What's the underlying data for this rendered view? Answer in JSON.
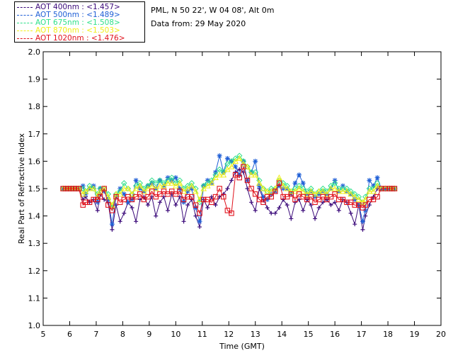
{
  "legend": [
    {
      "label": "AOT  400nm : <1.457>",
      "color": "#3b0a7a"
    },
    {
      "label": "AOT  500nm : <1.489>",
      "color": "#1f5fd6"
    },
    {
      "label": "AOT  675nm : <1.508>",
      "color": "#2ee08a"
    },
    {
      "label": "AOT  870nm : <1.503>",
      "color": "#f2ee1a"
    },
    {
      "label": "AOT 1020nm : <1.476>",
      "color": "#e0121c"
    }
  ],
  "info": {
    "location": "PML, N 50 22', W 04 08', Alt 0m",
    "date": "Data from: 29 May 2020"
  },
  "chart_data": {
    "type": "line",
    "xlabel": "Time (GMT)",
    "ylabel": "Real Part of Refractive Index",
    "xlim": [
      5,
      20
    ],
    "ylim": [
      1.0,
      2.0
    ],
    "xticks": [
      5,
      6,
      7,
      8,
      9,
      10,
      11,
      12,
      13,
      14,
      15,
      16,
      17,
      18,
      19,
      20
    ],
    "yticks": [
      "1.0",
      "1.1",
      "1.2",
      "1.3",
      "1.4",
      "1.5",
      "1.6",
      "1.7",
      "1.8",
      "1.9",
      "2.0"
    ],
    "x": [
      5.75,
      5.85,
      5.95,
      6.05,
      6.15,
      6.25,
      6.35,
      6.5,
      6.6,
      6.75,
      6.9,
      7.05,
      7.15,
      7.3,
      7.45,
      7.6,
      7.75,
      7.9,
      8.05,
      8.2,
      8.35,
      8.5,
      8.65,
      8.8,
      8.95,
      9.1,
      9.25,
      9.4,
      9.55,
      9.7,
      9.85,
      10.0,
      10.15,
      10.3,
      10.45,
      10.6,
      10.75,
      10.9,
      11.05,
      11.2,
      11.35,
      11.5,
      11.65,
      11.8,
      11.95,
      12.1,
      12.25,
      12.4,
      12.55,
      12.7,
      12.85,
      13.0,
      13.15,
      13.3,
      13.45,
      13.6,
      13.75,
      13.9,
      14.05,
      14.2,
      14.35,
      14.5,
      14.65,
      14.8,
      14.95,
      15.1,
      15.25,
      15.4,
      15.55,
      15.7,
      15.85,
      16.0,
      16.15,
      16.3,
      16.45,
      16.6,
      16.75,
      16.9,
      17.05,
      17.15,
      17.3,
      17.45,
      17.6,
      17.75,
      17.9,
      18.05,
      18.15,
      18.25
    ],
    "series": [
      {
        "name": "AOT 400nm",
        "color": "#3b0a7a",
        "marker": "plus",
        "values": [
          1.5,
          1.5,
          1.5,
          1.5,
          1.5,
          1.5,
          1.5,
          1.46,
          1.47,
          1.45,
          1.46,
          1.42,
          1.48,
          1.46,
          1.45,
          1.35,
          1.44,
          1.38,
          1.41,
          1.45,
          1.43,
          1.38,
          1.46,
          1.47,
          1.44,
          1.47,
          1.4,
          1.45,
          1.47,
          1.42,
          1.48,
          1.44,
          1.47,
          1.38,
          1.44,
          1.46,
          1.4,
          1.36,
          1.46,
          1.43,
          1.47,
          1.44,
          1.47,
          1.48,
          1.5,
          1.53,
          1.56,
          1.57,
          1.56,
          1.5,
          1.45,
          1.42,
          1.5,
          1.46,
          1.43,
          1.41,
          1.41,
          1.43,
          1.46,
          1.44,
          1.39,
          1.45,
          1.46,
          1.42,
          1.46,
          1.44,
          1.39,
          1.43,
          1.45,
          1.46,
          1.44,
          1.45,
          1.42,
          1.46,
          1.45,
          1.41,
          1.37,
          1.44,
          1.35,
          1.4,
          1.44,
          1.47,
          1.5,
          1.5,
          1.5,
          1.5,
          1.5,
          1.5
        ]
      },
      {
        "name": "AOT 500nm",
        "color": "#1f5fd6",
        "marker": "asterisk",
        "values": [
          1.5,
          1.5,
          1.5,
          1.5,
          1.5,
          1.5,
          1.5,
          1.51,
          1.48,
          1.5,
          1.51,
          1.45,
          1.5,
          1.49,
          1.46,
          1.37,
          1.47,
          1.5,
          1.48,
          1.45,
          1.46,
          1.53,
          1.5,
          1.49,
          1.51,
          1.52,
          1.5,
          1.53,
          1.51,
          1.54,
          1.53,
          1.54,
          1.5,
          1.45,
          1.49,
          1.5,
          1.43,
          1.38,
          1.51,
          1.53,
          1.52,
          1.56,
          1.62,
          1.56,
          1.61,
          1.6,
          1.58,
          1.55,
          1.6,
          1.53,
          1.56,
          1.6,
          1.51,
          1.47,
          1.46,
          1.48,
          1.49,
          1.51,
          1.5,
          1.5,
          1.48,
          1.52,
          1.55,
          1.52,
          1.48,
          1.49,
          1.47,
          1.48,
          1.49,
          1.48,
          1.5,
          1.53,
          1.49,
          1.51,
          1.49,
          1.48,
          1.46,
          1.44,
          1.38,
          1.42,
          1.53,
          1.51,
          1.54,
          1.5,
          1.5,
          1.5,
          1.5,
          1.5
        ]
      },
      {
        "name": "AOT 675nm",
        "color": "#2ee08a",
        "marker": "diamond",
        "values": [
          1.5,
          1.5,
          1.5,
          1.5,
          1.5,
          1.5,
          1.5,
          1.5,
          1.49,
          1.51,
          1.5,
          1.48,
          1.5,
          1.5,
          1.48,
          1.43,
          1.48,
          1.49,
          1.52,
          1.5,
          1.48,
          1.51,
          1.52,
          1.5,
          1.51,
          1.53,
          1.52,
          1.53,
          1.52,
          1.53,
          1.54,
          1.52,
          1.53,
          1.5,
          1.51,
          1.52,
          1.5,
          1.45,
          1.51,
          1.52,
          1.53,
          1.55,
          1.57,
          1.56,
          1.59,
          1.6,
          1.61,
          1.62,
          1.6,
          1.58,
          1.56,
          1.56,
          1.53,
          1.5,
          1.49,
          1.5,
          1.5,
          1.53,
          1.52,
          1.51,
          1.49,
          1.5,
          1.51,
          1.5,
          1.49,
          1.5,
          1.48,
          1.49,
          1.5,
          1.49,
          1.51,
          1.52,
          1.5,
          1.5,
          1.5,
          1.49,
          1.48,
          1.47,
          1.45,
          1.47,
          1.5,
          1.5,
          1.52,
          1.5,
          1.5,
          1.5,
          1.5,
          1.5
        ]
      },
      {
        "name": "AOT 870nm",
        "color": "#f2ee1a",
        "marker": "triangle",
        "values": [
          1.5,
          1.5,
          1.5,
          1.5,
          1.5,
          1.5,
          1.5,
          1.48,
          1.49,
          1.5,
          1.5,
          1.47,
          1.49,
          1.5,
          1.47,
          1.44,
          1.48,
          1.48,
          1.5,
          1.5,
          1.48,
          1.5,
          1.51,
          1.49,
          1.5,
          1.51,
          1.5,
          1.51,
          1.51,
          1.52,
          1.52,
          1.51,
          1.52,
          1.49,
          1.5,
          1.51,
          1.49,
          1.46,
          1.5,
          1.51,
          1.52,
          1.54,
          1.55,
          1.55,
          1.57,
          1.58,
          1.6,
          1.61,
          1.59,
          1.58,
          1.55,
          1.55,
          1.52,
          1.5,
          1.49,
          1.49,
          1.5,
          1.54,
          1.51,
          1.5,
          1.49,
          1.49,
          1.5,
          1.49,
          1.48,
          1.49,
          1.48,
          1.49,
          1.49,
          1.48,
          1.5,
          1.5,
          1.49,
          1.49,
          1.49,
          1.48,
          1.47,
          1.46,
          1.45,
          1.46,
          1.49,
          1.49,
          1.51,
          1.5,
          1.5,
          1.5,
          1.5,
          1.5
        ]
      },
      {
        "name": "AOT 1020nm",
        "color": "#e0121c",
        "marker": "square",
        "values": [
          1.5,
          1.5,
          1.5,
          1.5,
          1.5,
          1.5,
          1.5,
          1.44,
          1.45,
          1.45,
          1.46,
          1.46,
          1.47,
          1.5,
          1.44,
          1.42,
          1.47,
          1.45,
          1.46,
          1.47,
          1.46,
          1.47,
          1.48,
          1.46,
          1.47,
          1.49,
          1.47,
          1.48,
          1.49,
          1.48,
          1.49,
          1.48,
          1.49,
          1.46,
          1.47,
          1.47,
          1.44,
          1.41,
          1.46,
          1.46,
          1.45,
          1.47,
          1.5,
          1.47,
          1.42,
          1.41,
          1.55,
          1.54,
          1.58,
          1.53,
          1.5,
          1.48,
          1.46,
          1.45,
          1.47,
          1.47,
          1.49,
          1.52,
          1.47,
          1.47,
          1.48,
          1.46,
          1.48,
          1.47,
          1.46,
          1.47,
          1.45,
          1.46,
          1.47,
          1.46,
          1.47,
          1.48,
          1.46,
          1.46,
          1.45,
          1.45,
          1.44,
          1.44,
          1.43,
          1.44,
          1.46,
          1.46,
          1.47,
          1.5,
          1.5,
          1.5,
          1.5,
          1.5
        ]
      }
    ]
  }
}
